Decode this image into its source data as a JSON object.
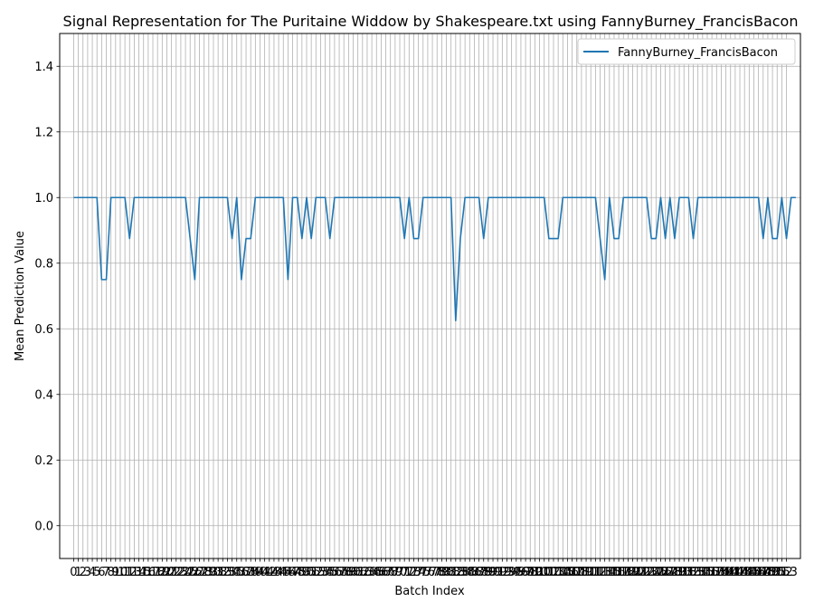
{
  "chart_data": {
    "type": "line",
    "title": "Signal Representation for The Puritaine Widdow by Shakespeare.txt using FannyBurney_FrancisBacon",
    "xlabel": "Batch Index",
    "ylabel": "Mean Prediction Value",
    "xlim": [
      -3,
      156
    ],
    "ylim": [
      -0.1,
      1.5
    ],
    "y_ticks": [
      "0.0",
      "0.2",
      "0.4",
      "0.6",
      "0.8",
      "1.0",
      "1.2",
      "1.4"
    ],
    "x_ticks": [
      "0",
      "1",
      "2",
      "3",
      "4",
      "5",
      "6",
      "7",
      "8",
      "9",
      "10",
      "11",
      "12",
      "13",
      "14",
      "15",
      "16",
      "17",
      "18",
      "19",
      "20",
      "21",
      "22",
      "23",
      "24",
      "25",
      "26",
      "27",
      "28",
      "29",
      "30",
      "31",
      "32",
      "33",
      "34",
      "35",
      "36",
      "37",
      "38",
      "39",
      "40",
      "41",
      "42",
      "43",
      "44",
      "45",
      "46",
      "47",
      "48",
      "49",
      "50",
      "51",
      "52",
      "53",
      "54",
      "55",
      "56",
      "57",
      "58",
      "59",
      "60",
      "61",
      "62",
      "63",
      "64",
      "65",
      "66",
      "67",
      "68",
      "69",
      "70",
      "71",
      "72",
      "73",
      "74",
      "75",
      "76",
      "77",
      "78",
      "79",
      "80",
      "81",
      "82",
      "83",
      "84",
      "85",
      "86",
      "87",
      "88",
      "89",
      "90",
      "91",
      "92",
      "93",
      "94",
      "95",
      "96",
      "97",
      "98",
      "99",
      "100",
      "101",
      "102",
      "103",
      "104",
      "105",
      "106",
      "107",
      "108",
      "109",
      "110",
      "111",
      "112",
      "113",
      "114",
      "115",
      "116",
      "117",
      "118",
      "119",
      "120",
      "121",
      "122",
      "123",
      "124",
      "125",
      "126",
      "127",
      "128",
      "129",
      "130",
      "131",
      "132",
      "133",
      "134",
      "135",
      "136",
      "137",
      "138",
      "139",
      "140",
      "141",
      "142",
      "143",
      "144",
      "145",
      "146",
      "147",
      "148",
      "149",
      "150",
      "151",
      "152",
      "153"
    ],
    "grid": true,
    "legend_position": "top-right",
    "series": [
      {
        "name": "FannyBurney_FrancisBacon",
        "color": "#1f77b4",
        "values": [
          1,
          1,
          1,
          1,
          1,
          1,
          0.75,
          0.75,
          1,
          1,
          1,
          1,
          0.875,
          1,
          1,
          1,
          1,
          1,
          1,
          1,
          1,
          1,
          1,
          1,
          1,
          0.875,
          0.75,
          1,
          1,
          1,
          1,
          1,
          1,
          1,
          0.875,
          1,
          0.75,
          0.875,
          0.875,
          1,
          1,
          1,
          1,
          1,
          1,
          1,
          0.75,
          1,
          1,
          0.875,
          1,
          0.875,
          1,
          1,
          1,
          0.875,
          1,
          1,
          1,
          1,
          1,
          1,
          1,
          1,
          1,
          1,
          1,
          1,
          1,
          1,
          1,
          0.875,
          1,
          0.875,
          0.875,
          1,
          1,
          1,
          1,
          1,
          1,
          1,
          0.625,
          0.875,
          1,
          1,
          1,
          1,
          0.875,
          1,
          1,
          1,
          1,
          1,
          1,
          1,
          1,
          1,
          1,
          1,
          1,
          1,
          0.875,
          0.875,
          0.875,
          1,
          1,
          1,
          1,
          1,
          1,
          1,
          1,
          0.875,
          0.75,
          1,
          0.875,
          0.875,
          1,
          1,
          1,
          1,
          1,
          1,
          0.875,
          0.875,
          1,
          0.875,
          1,
          0.875,
          1,
          1,
          1,
          0.875,
          1,
          1,
          1,
          1,
          1,
          1,
          1,
          1,
          1,
          1,
          1,
          1,
          1,
          1,
          0.875,
          1,
          0.875,
          0.875,
          1,
          0.875,
          1,
          1
        ]
      }
    ]
  }
}
